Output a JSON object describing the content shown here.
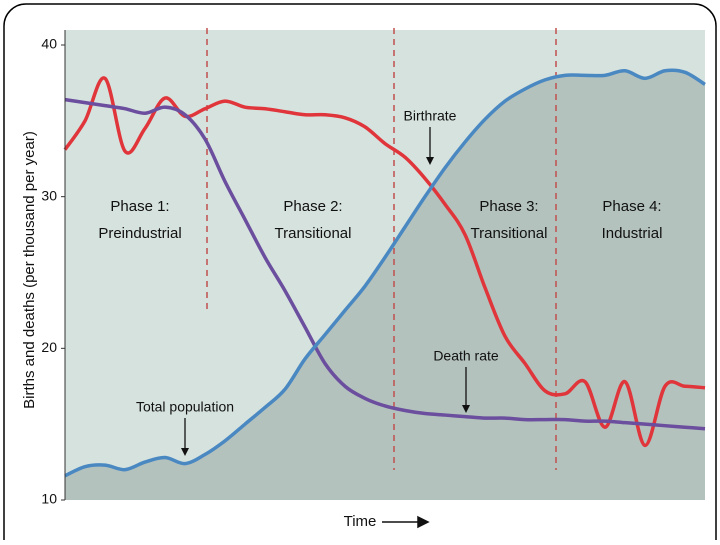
{
  "chart_data": {
    "type": "line",
    "y_label": "Births and deaths (per thousand per year)",
    "x_label": "Time",
    "ylim": [
      10,
      40
    ],
    "yticks": [
      10,
      20,
      30,
      40
    ],
    "series": [
      {
        "name": "Birthrate",
        "color": "#e0353a",
        "values": [
          33.1,
          35,
          37.8,
          33,
          34.5,
          36.5,
          35.3,
          35.8,
          36.3,
          35.9,
          35.8,
          35.6,
          35.4,
          35.4,
          35.2,
          34.6,
          33.5,
          32.6,
          31.2,
          29.5,
          27.5,
          24,
          20.8,
          19,
          17.2,
          17,
          17.8,
          14.8,
          17.8,
          13.6,
          17.5,
          17.5,
          17.4
        ]
      },
      {
        "name": "Death rate",
        "color": "#6b4e9e",
        "values": [
          36.4,
          36.2,
          36.0,
          35.8,
          35.5,
          35.9,
          35.4,
          33.8,
          31.0,
          28.5,
          26,
          23.8,
          21.4,
          19.0,
          17.5,
          16.7,
          16.2,
          15.9,
          15.7,
          15.6,
          15.5,
          15.4,
          15.4,
          15.3,
          15.3,
          15.3,
          15.2,
          15.2,
          15.1,
          15.0,
          14.9,
          14.8,
          14.7
        ]
      },
      {
        "name": "Total population",
        "color": "#4a88c2",
        "values": [
          11.6,
          12.2,
          12.3,
          12,
          12.5,
          12.8,
          12.4,
          13,
          13.9,
          15,
          16.1,
          17.3,
          19.3,
          20.9,
          22.5,
          24.1,
          26.0,
          28.0,
          30.0,
          31.9,
          33.6,
          35.1,
          36.3,
          37.1,
          37.7,
          38,
          38,
          38,
          38.3,
          37.8,
          38.3,
          38.2,
          37.4
        ]
      }
    ],
    "phases": [
      {
        "name": "Phase 1:",
        "label": "Preindustrial"
      },
      {
        "name": "Phase 2:",
        "label": "Transitional"
      },
      {
        "name": "Phase 3:",
        "label": "Transitional"
      },
      {
        "name": "Phase 4:",
        "label": "Industrial"
      }
    ]
  }
}
